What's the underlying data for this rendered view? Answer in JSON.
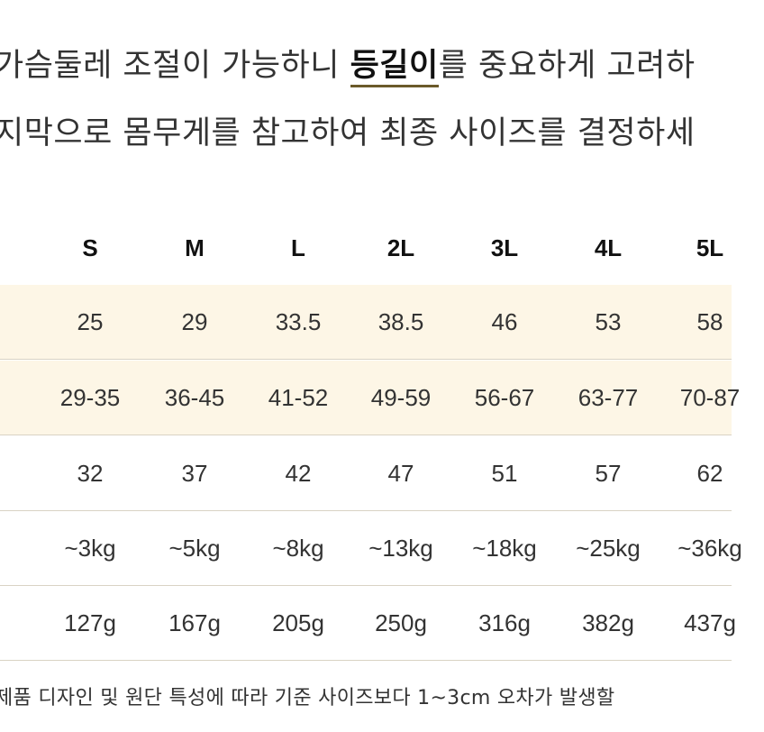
{
  "intro": {
    "line1_before": "가슴둘레 조절이 가능하니 ",
    "line1_highlight": "등길이",
    "line1_after": "를 중요하게 고려하",
    "line2": "지막으로 몸무게를 참고하여 최종 사이즈를 결정하세"
  },
  "size_table": {
    "sizes": [
      "S",
      "M",
      "L",
      "2L",
      "3L",
      "4L",
      "5L"
    ],
    "rows": [
      [
        "25",
        "29",
        "33.5",
        "38.5",
        "46",
        "53",
        "58"
      ],
      [
        "29-35",
        "36-45",
        "41-52",
        "49-59",
        "56-67",
        "63-77",
        "70-87"
      ],
      [
        "32",
        "37",
        "42",
        "47",
        "51",
        "57",
        "62"
      ],
      [
        "~3kg",
        "~5kg",
        "~8kg",
        "~13kg",
        "~18kg",
        "~25kg",
        "~36kg"
      ],
      [
        "127g",
        "167g",
        "205g",
        "250g",
        "316g",
        "382g",
        "437g"
      ]
    ]
  },
  "footnote": "제품 디자인 및 원단 특성에 따라 기준 사이즈보다 1~3cm 오차가 발생할",
  "colors": {
    "highlight_row_bg": "#fdf6e6",
    "divider": "#d9d3c4",
    "underline": "#6b5a2a"
  }
}
